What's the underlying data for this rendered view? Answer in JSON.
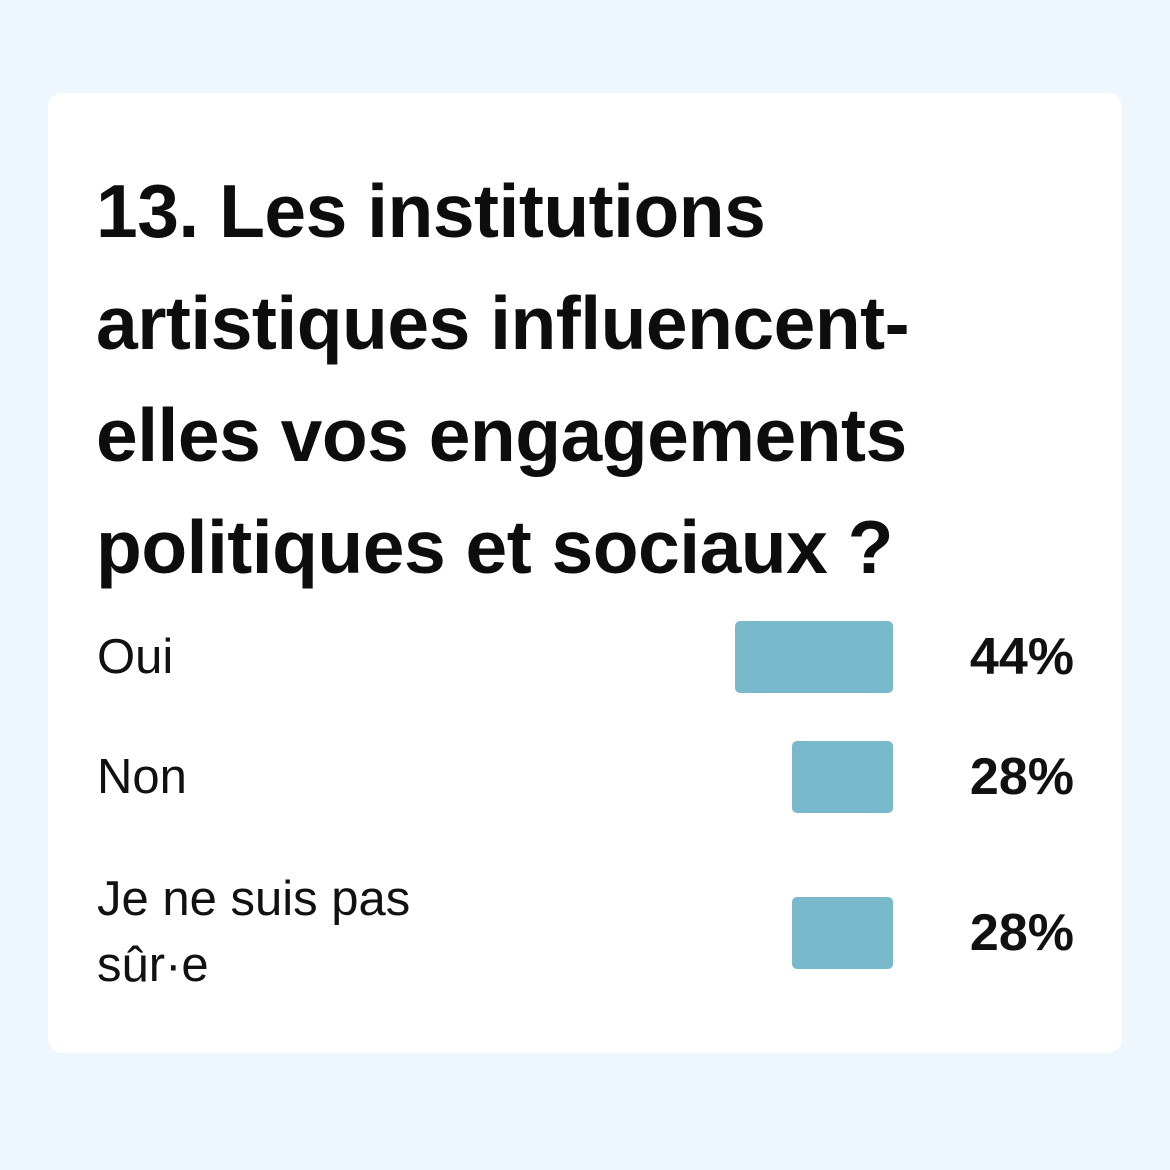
{
  "chart_data": {
    "type": "bar",
    "title": "13. Les institutions artistiques influencent-elles vos engagements politiques et sociaux ?",
    "categories": [
      "Oui",
      "Non",
      "Je ne suis pas sûr·e"
    ],
    "values": [
      44,
      28,
      28
    ],
    "value_labels": [
      "44%",
      "28%",
      "28%"
    ],
    "unit": "%",
    "orientation": "horizontal",
    "bar_color": "#7ab8cb",
    "grid": false,
    "legend": "none"
  }
}
